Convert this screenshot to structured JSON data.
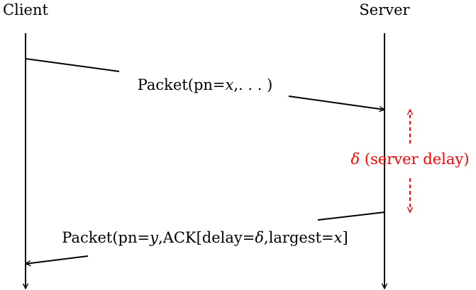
{
  "actors": {
    "client": "Client",
    "server": "Server"
  },
  "messages": [
    {
      "from": "client",
      "to": "server",
      "parts": [
        {
          "text": "Packet(pn=",
          "italic": false
        },
        {
          "text": "x",
          "italic": true
        },
        {
          "text": ",. . . )",
          "italic": false
        }
      ]
    },
    {
      "from": "server",
      "to": "client",
      "parts": [
        {
          "text": "Packet(pn=",
          "italic": false
        },
        {
          "text": "y",
          "italic": true
        },
        {
          "text": ",ACK[delay=",
          "italic": false
        },
        {
          "text": "δ",
          "italic": true
        },
        {
          "text": ",largest=",
          "italic": false
        },
        {
          "text": "x",
          "italic": true
        },
        {
          "text": "]",
          "italic": false
        }
      ]
    }
  ],
  "delay_annotation": {
    "symbol": "δ",
    "text": " (server delay)",
    "color": "#ff0000"
  },
  "colors": {
    "line": "#000000",
    "annotation": "#ff0000"
  }
}
